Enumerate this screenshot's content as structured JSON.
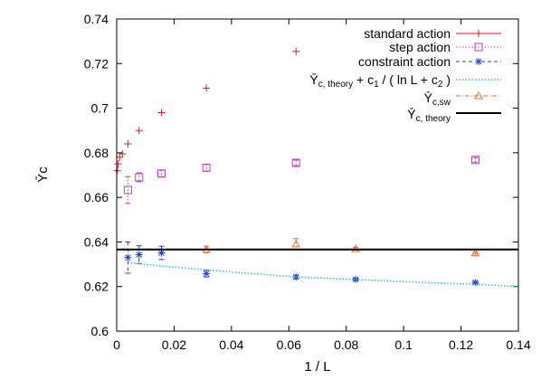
{
  "chart_data": {
    "type": "scatter",
    "title": "",
    "xlabel": "1 / L",
    "ylabel": "Ῡc",
    "xlim": [
      0,
      0.14
    ],
    "ylim": [
      0.6,
      0.74
    ],
    "xticks": [
      "0",
      "0.02",
      "0.04",
      "0.06",
      "0.08",
      "0.1",
      "0.12",
      "0.14"
    ],
    "yticks": [
      "0.6",
      "0.62",
      "0.64",
      "0.66",
      "0.68",
      "0.7",
      "0.72",
      "0.74"
    ],
    "grid": false,
    "legend_position": "top-right",
    "series": [
      {
        "name": "standard action",
        "marker": "plus",
        "color": "#e31a1c",
        "points": [
          {
            "x": 0.0002,
            "y": 0.672
          },
          {
            "x": 0.0005,
            "y": 0.675
          },
          {
            "x": 0.001,
            "y": 0.678
          },
          {
            "x": 0.002,
            "y": 0.6795
          },
          {
            "x": 0.0039,
            "y": 0.684
          },
          {
            "x": 0.0078,
            "y": 0.69
          },
          {
            "x": 0.0156,
            "y": 0.698
          },
          {
            "x": 0.03125,
            "y": 0.709
          },
          {
            "x": 0.0625,
            "y": 0.7255
          }
        ]
      },
      {
        "name": "step action",
        "marker": "square",
        "color": "#cc33cc",
        "points": [
          {
            "x": 0.0039,
            "y": 0.6633,
            "err": 0.006
          },
          {
            "x": 0.0078,
            "y": 0.669,
            "err": 0.002
          },
          {
            "x": 0.0156,
            "y": 0.6707,
            "err": 0.0015
          },
          {
            "x": 0.03125,
            "y": 0.6733,
            "err": 0.0015
          },
          {
            "x": 0.0625,
            "y": 0.6755,
            "err": 0.0012
          },
          {
            "x": 0.125,
            "y": 0.6768,
            "err": 0.001
          }
        ]
      },
      {
        "name": "constraint action",
        "marker": "star",
        "color": "#1f3fd6",
        "points": [
          {
            "x": 0.0039,
            "y": 0.633,
            "err": 0.007
          },
          {
            "x": 0.0078,
            "y": 0.6343,
            "err": 0.004
          },
          {
            "x": 0.0156,
            "y": 0.6351,
            "err": 0.003
          },
          {
            "x": 0.03125,
            "y": 0.6258,
            "err": 0.0015
          },
          {
            "x": 0.0625,
            "y": 0.6243,
            "err": 0.0008
          },
          {
            "x": 0.0833,
            "y": 0.6232,
            "err": 0.0005
          },
          {
            "x": 0.125,
            "y": 0.6218,
            "err": 0.0005
          }
        ]
      },
      {
        "name": "Ῡc, theory + c1 / ( ln L + c2 )",
        "type": "line",
        "style": "dotted",
        "color": "#22c4cc",
        "points": [
          {
            "x": 0.0039,
            "y": 0.6308
          },
          {
            "x": 0.0078,
            "y": 0.6302
          },
          {
            "x": 0.0156,
            "y": 0.6292
          },
          {
            "x": 0.025,
            "y": 0.6282
          },
          {
            "x": 0.03125,
            "y": 0.6275
          },
          {
            "x": 0.045,
            "y": 0.626
          },
          {
            "x": 0.0625,
            "y": 0.6243
          },
          {
            "x": 0.0833,
            "y": 0.6232
          },
          {
            "x": 0.1,
            "y": 0.6222
          },
          {
            "x": 0.125,
            "y": 0.621
          },
          {
            "x": 0.14,
            "y": 0.62
          }
        ]
      },
      {
        "name": "Ῡc,sw",
        "marker": "triangle",
        "color": "#e8702a",
        "points": [
          {
            "x": 0.03125,
            "y": 0.6366,
            "err": 0.0015
          },
          {
            "x": 0.0625,
            "y": 0.639,
            "err": 0.0025
          },
          {
            "x": 0.0833,
            "y": 0.6369,
            "err": 0.0006
          },
          {
            "x": 0.125,
            "y": 0.635,
            "err": 0.0005
          }
        ]
      },
      {
        "name": "Ῡc, theory",
        "type": "hline",
        "color": "#000000",
        "y": 0.6366
      }
    ]
  },
  "legend": {
    "standard": "standard action",
    "step": "step action",
    "constraint": "constraint action",
    "fit_main": "Ῡ",
    "fit_sub": "c, theory",
    "fit_rest": " + c",
    "fit_sub1": "1",
    "fit_rest2": " / ( ln L + c",
    "fit_sub2": "2",
    "fit_end": " )",
    "sw_main": "Ῡ",
    "sw_sub": "c,sw",
    "theory_main": "Ῡ",
    "theory_sub": "c, theory"
  }
}
